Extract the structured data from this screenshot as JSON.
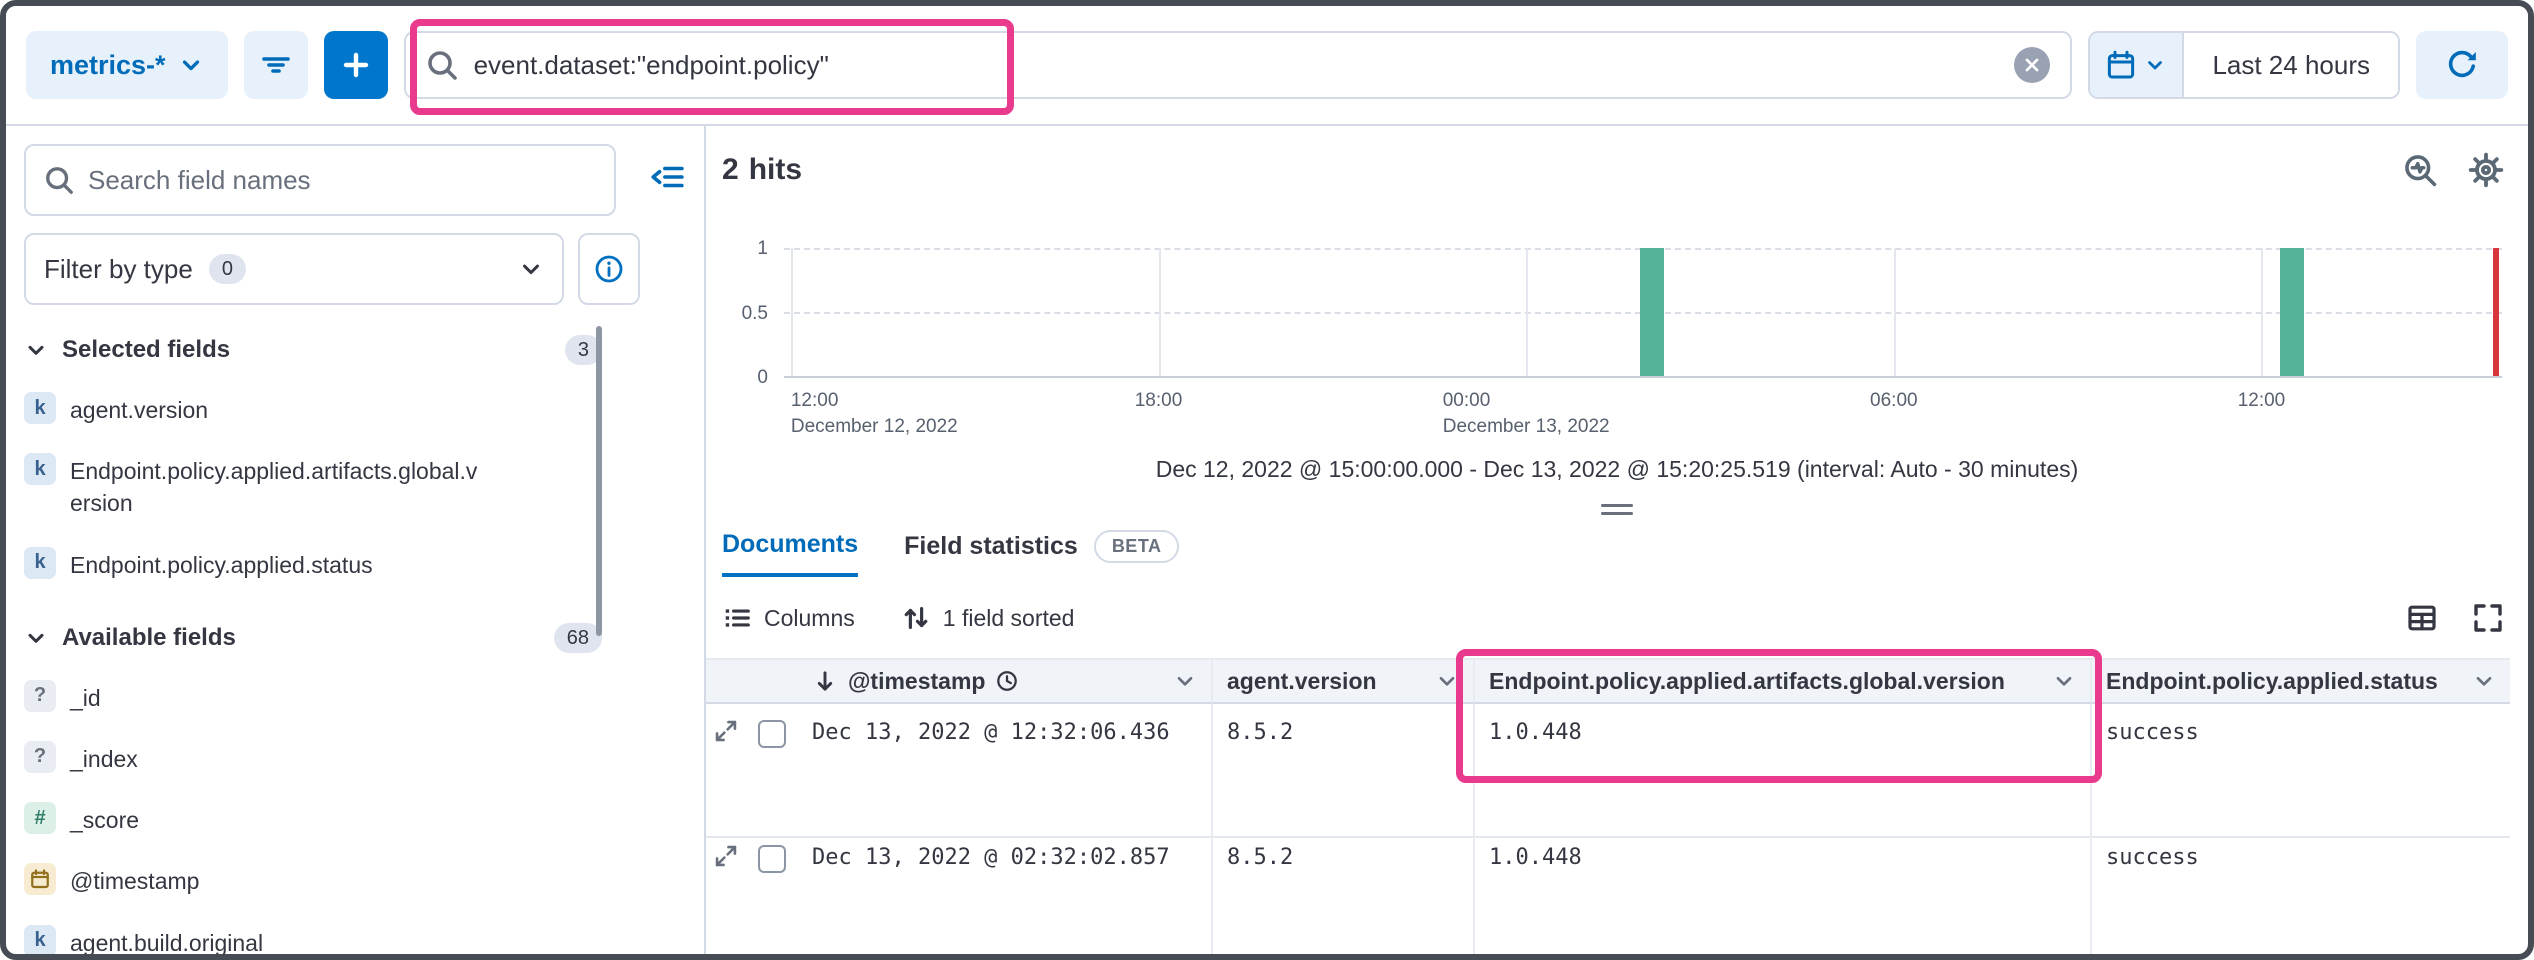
{
  "colors": {
    "primary": "#0077cc",
    "primary_text": "#006bb8",
    "highlight_pink": "#ea3a8d",
    "bar_green": "#54b399",
    "end_marker_red": "#d6363c",
    "border": "#d3dae6",
    "text": "#343741",
    "muted_text": "#69707d"
  },
  "top_bar": {
    "data_view_label": "metrics-*",
    "query_value": "event.dataset:\"endpoint.policy\"",
    "time_range_label": "Last 24 hours"
  },
  "sidebar": {
    "field_search_placeholder": "Search field names",
    "filter_by_type_label": "Filter by type",
    "filter_by_type_count": "0",
    "selected_fields": {
      "label": "Selected fields",
      "count": "3",
      "items": [
        {
          "token": "k",
          "name": "agent.version"
        },
        {
          "token": "k",
          "name": "Endpoint.policy.applied.artifacts.global.version"
        },
        {
          "token": "k",
          "name": "Endpoint.policy.applied.status"
        }
      ]
    },
    "available_fields": {
      "label": "Available fields",
      "count": "68",
      "items": [
        {
          "token": "?",
          "name": "_id"
        },
        {
          "token": "?",
          "name": "_index"
        },
        {
          "token": "#",
          "name": "_score"
        },
        {
          "token": "date",
          "name": "@timestamp"
        },
        {
          "token": "k",
          "name": "agent.build.original"
        }
      ]
    }
  },
  "main": {
    "hits_count": "2",
    "hits_label": "hits",
    "time_summary": "Dec 12, 2022 @ 15:00:00.000 - Dec 13, 2022 @ 15:20:25.519 (interval: Auto - 30 minutes)",
    "tabs": {
      "documents": "Documents",
      "field_statistics": "Field statistics",
      "beta_badge": "BETA"
    },
    "grid_toolbar": {
      "columns_label": "Columns",
      "sorted_label": "1 field sorted"
    },
    "table": {
      "headers": [
        "@timestamp",
        "agent.version",
        "Endpoint.policy.applied.artifacts.global.version",
        "Endpoint.policy.applied.status"
      ],
      "rows": [
        {
          "cells": [
            "Dec 13, 2022 @ 12:32:06.436",
            "8.5.2",
            "1.0.448",
            "success"
          ]
        },
        {
          "cells": [
            "Dec 13, 2022 @ 02:32:02.857",
            "8.5.2",
            "1.0.448",
            "success"
          ]
        }
      ]
    }
  },
  "chart_data": {
    "type": "bar",
    "interval": "Auto - 30 minutes",
    "ylim": [
      0,
      1
    ],
    "y_ticks": [
      "1",
      "0.5",
      "0"
    ],
    "x_ticks": [
      {
        "label": "12:00",
        "sub": "December 12, 2022",
        "pos": 0.004
      },
      {
        "label": "18:00",
        "pos": 0.218
      },
      {
        "label": "00:00",
        "sub": "December 13, 2022",
        "pos": 0.432
      },
      {
        "label": "06:00",
        "pos": 0.646
      },
      {
        "label": "12:00",
        "pos": 0.86
      }
    ],
    "bars": [
      {
        "x": "Dec 13, 2022 02:30",
        "value": 1,
        "pos": 0.505
      },
      {
        "x": "Dec 13, 2022 12:30",
        "value": 1,
        "pos": 0.878
      }
    ],
    "end_marker_pos": 0.998
  }
}
